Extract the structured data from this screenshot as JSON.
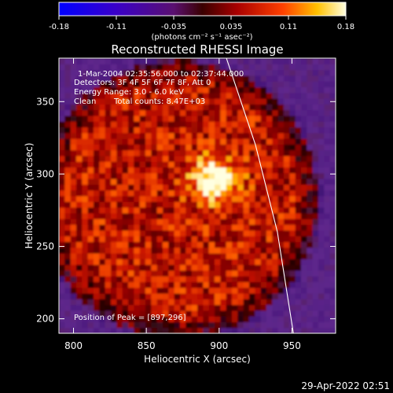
{
  "chart_data": {
    "type": "heatmap",
    "title": "Reconstructed RHESSI Image",
    "xlabel": "Heliocentric X (arcsec)",
    "ylabel": "Heliocentric Y (arcsec)",
    "xlim": [
      790,
      980
    ],
    "ylim": [
      190,
      380
    ],
    "x_ticks": [
      800,
      850,
      900,
      950
    ],
    "y_ticks": [
      200,
      250,
      300,
      350
    ],
    "colorbar": {
      "range": [
        -0.18,
        0.18
      ],
      "ticks": [
        "-0.18",
        "-0.11",
        "-0.035",
        "0.035",
        "0.11",
        "0.18"
      ],
      "unit_label": "(photons cm⁻² s⁻¹ asec⁻²)"
    },
    "annotations": [
      "1-Mar-2004 02:35:56.000 to 02:37:44.000",
      "Detectors: 3F 4F 5F 6F 7F 8F, Att 0",
      "Energy Range: 3.0 - 6.0 keV",
      "Clean",
      "Total counts: 8.47E+03",
      "Position of Peak = [897,296]"
    ],
    "peak": {
      "x": 897,
      "y": 296
    },
    "limb_curve": [
      [
        905,
        380
      ],
      [
        925,
        320
      ],
      [
        940,
        260
      ],
      [
        951,
        190
      ]
    ],
    "grid": false,
    "timestamp": "29-Apr-2022 02:51"
  }
}
